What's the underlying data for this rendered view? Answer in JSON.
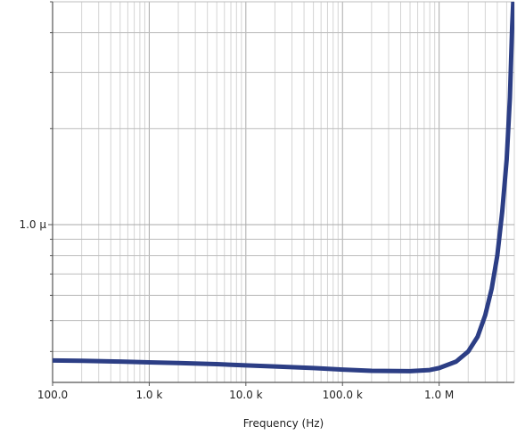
{
  "chart_data": {
    "type": "line",
    "xlabel": "Frequency (Hz)",
    "ylabel": "",
    "x_scale": "log",
    "y_scale": "log",
    "xlim": [
      100,
      6000000
    ],
    "ylim": [
      3.2e-07,
      5e-06
    ],
    "grid": true,
    "x_ticks": [
      {
        "value": 100,
        "label": "100.0"
      },
      {
        "value": 1000,
        "label": "1.0 k"
      },
      {
        "value": 10000,
        "label": "10.0 k"
      },
      {
        "value": 100000,
        "label": "100.0 k"
      },
      {
        "value": 1000000,
        "label": "1.0 M"
      }
    ],
    "y_ticks": [
      {
        "value": 1e-06,
        "label": "1.0 µ"
      }
    ],
    "series": [
      {
        "color": "#2c3e85",
        "points": [
          [
            100,
            3.75e-07
          ],
          [
            200,
            3.74e-07
          ],
          [
            500,
            3.72e-07
          ],
          [
            1000,
            3.7e-07
          ],
          [
            2000,
            3.68e-07
          ],
          [
            5000,
            3.65e-07
          ],
          [
            10000,
            3.62e-07
          ],
          [
            20000,
            3.59e-07
          ],
          [
            50000,
            3.55e-07
          ],
          [
            100000,
            3.51e-07
          ],
          [
            200000,
            3.48e-07
          ],
          [
            500000,
            3.47e-07
          ],
          [
            800000,
            3.5e-07
          ],
          [
            1000000,
            3.55e-07
          ],
          [
            1500000,
            3.72e-07
          ],
          [
            2000000,
            4e-07
          ],
          [
            2500000,
            4.45e-07
          ],
          [
            3000000,
            5.2e-07
          ],
          [
            3500000,
            6.3e-07
          ],
          [
            4000000,
            8e-07
          ],
          [
            4500000,
            1.1e-06
          ],
          [
            5000000,
            1.6e-06
          ],
          [
            5400000,
            2.5e-06
          ],
          [
            5700000,
            4.2e-06
          ],
          [
            5850000,
            5e-06
          ]
        ]
      }
    ]
  }
}
